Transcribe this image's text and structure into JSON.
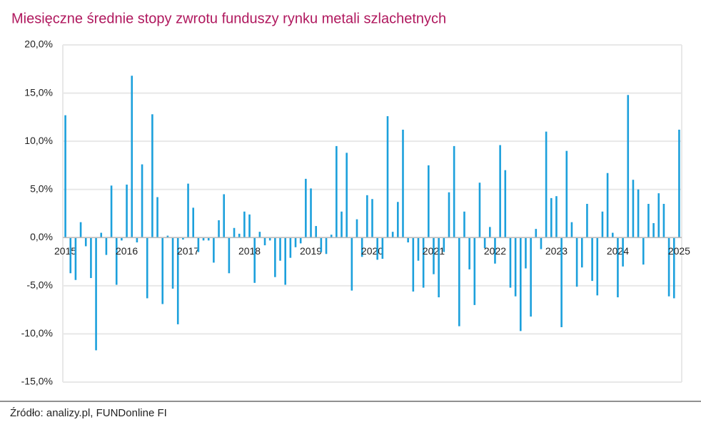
{
  "chart_data": {
    "type": "bar",
    "title": "Miesięczne średnie stopy zwrotu funduszy rynku metali szlachetnych",
    "source": "Źródło: analizy.pl, FUNDonline FI",
    "categories": [
      "2015",
      null,
      null,
      null,
      null,
      null,
      null,
      null,
      null,
      null,
      null,
      null,
      "2016",
      null,
      null,
      null,
      null,
      null,
      null,
      null,
      null,
      null,
      null,
      null,
      "2017",
      null,
      null,
      null,
      null,
      null,
      null,
      null,
      null,
      null,
      null,
      null,
      "2018",
      null,
      null,
      null,
      null,
      null,
      null,
      null,
      null,
      null,
      null,
      null,
      "2019",
      null,
      null,
      null,
      null,
      null,
      null,
      null,
      null,
      null,
      null,
      null,
      "2020",
      null,
      null,
      null,
      null,
      null,
      null,
      null,
      null,
      null,
      null,
      null,
      "2021",
      null,
      null,
      null,
      null,
      null,
      null,
      null,
      null,
      null,
      null,
      null,
      "2022",
      null,
      null,
      null,
      null,
      null,
      null,
      null,
      null,
      null,
      null,
      null,
      "2023",
      null,
      null,
      null,
      null,
      null,
      null,
      null,
      null,
      null,
      null,
      null,
      "2024",
      null,
      null,
      null,
      null,
      null,
      null,
      null,
      null,
      null,
      null,
      null,
      "2025"
    ],
    "values": [
      12.7,
      -3.7,
      -4.4,
      1.6,
      -0.9,
      -4.2,
      -11.7,
      0.5,
      -1.8,
      5.4,
      -4.9,
      -0.3,
      5.5,
      16.8,
      -0.5,
      7.6,
      -6.3,
      12.8,
      4.2,
      -6.9,
      0.2,
      -5.3,
      -9.0,
      -0.2,
      5.6,
      3.1,
      -1.5,
      -0.3,
      -0.3,
      -2.6,
      1.8,
      4.5,
      -3.7,
      1.0,
      0.4,
      2.7,
      2.4,
      -4.7,
      0.6,
      -0.8,
      -0.3,
      -4.1,
      -2.4,
      -4.9,
      -2.1,
      -1.0,
      -0.6,
      6.1,
      5.1,
      1.2,
      -1.5,
      -1.7,
      0.3,
      9.5,
      2.7,
      8.8,
      -5.5,
      1.9,
      -2.0,
      4.4,
      4.0,
      -2.3,
      -2.2,
      12.6,
      0.6,
      3.7,
      11.2,
      -0.5,
      -5.6,
      -2.4,
      -5.2,
      7.5,
      -3.8,
      -6.2,
      -1.5,
      4.7,
      9.5,
      -9.2,
      2.7,
      -3.3,
      -7.0,
      5.7,
      -1.1,
      1.1,
      -2.7,
      9.6,
      7.0,
      -5.2,
      -6.1,
      -9.7,
      -3.2,
      -8.2,
      0.9,
      -1.2,
      11.0,
      4.1,
      4.3,
      -9.3,
      9.0,
      1.6,
      -5.1,
      -3.1,
      3.5,
      -4.5,
      -6.0,
      2.7,
      6.7,
      0.5,
      -6.2,
      -3.0,
      14.8,
      6.0,
      5.0,
      -2.8,
      3.5,
      1.5,
      4.6,
      3.5,
      -6.1,
      -6.3,
      11.2
    ],
    "color": "#1ca0dc",
    "ylim": [
      -15,
      20
    ],
    "yticks": [
      {
        "value": -15,
        "label": "-15,0%"
      },
      {
        "value": -10,
        "label": "-10,0%"
      },
      {
        "value": -5,
        "label": "-5,0%"
      },
      {
        "value": 0,
        "label": "0,0%"
      },
      {
        "value": 5,
        "label": "5,0%"
      },
      {
        "value": 10,
        "label": "10,0%"
      },
      {
        "value": 15,
        "label": "15,0%"
      },
      {
        "value": 20,
        "label": "20,0%"
      }
    ],
    "grid": true
  }
}
